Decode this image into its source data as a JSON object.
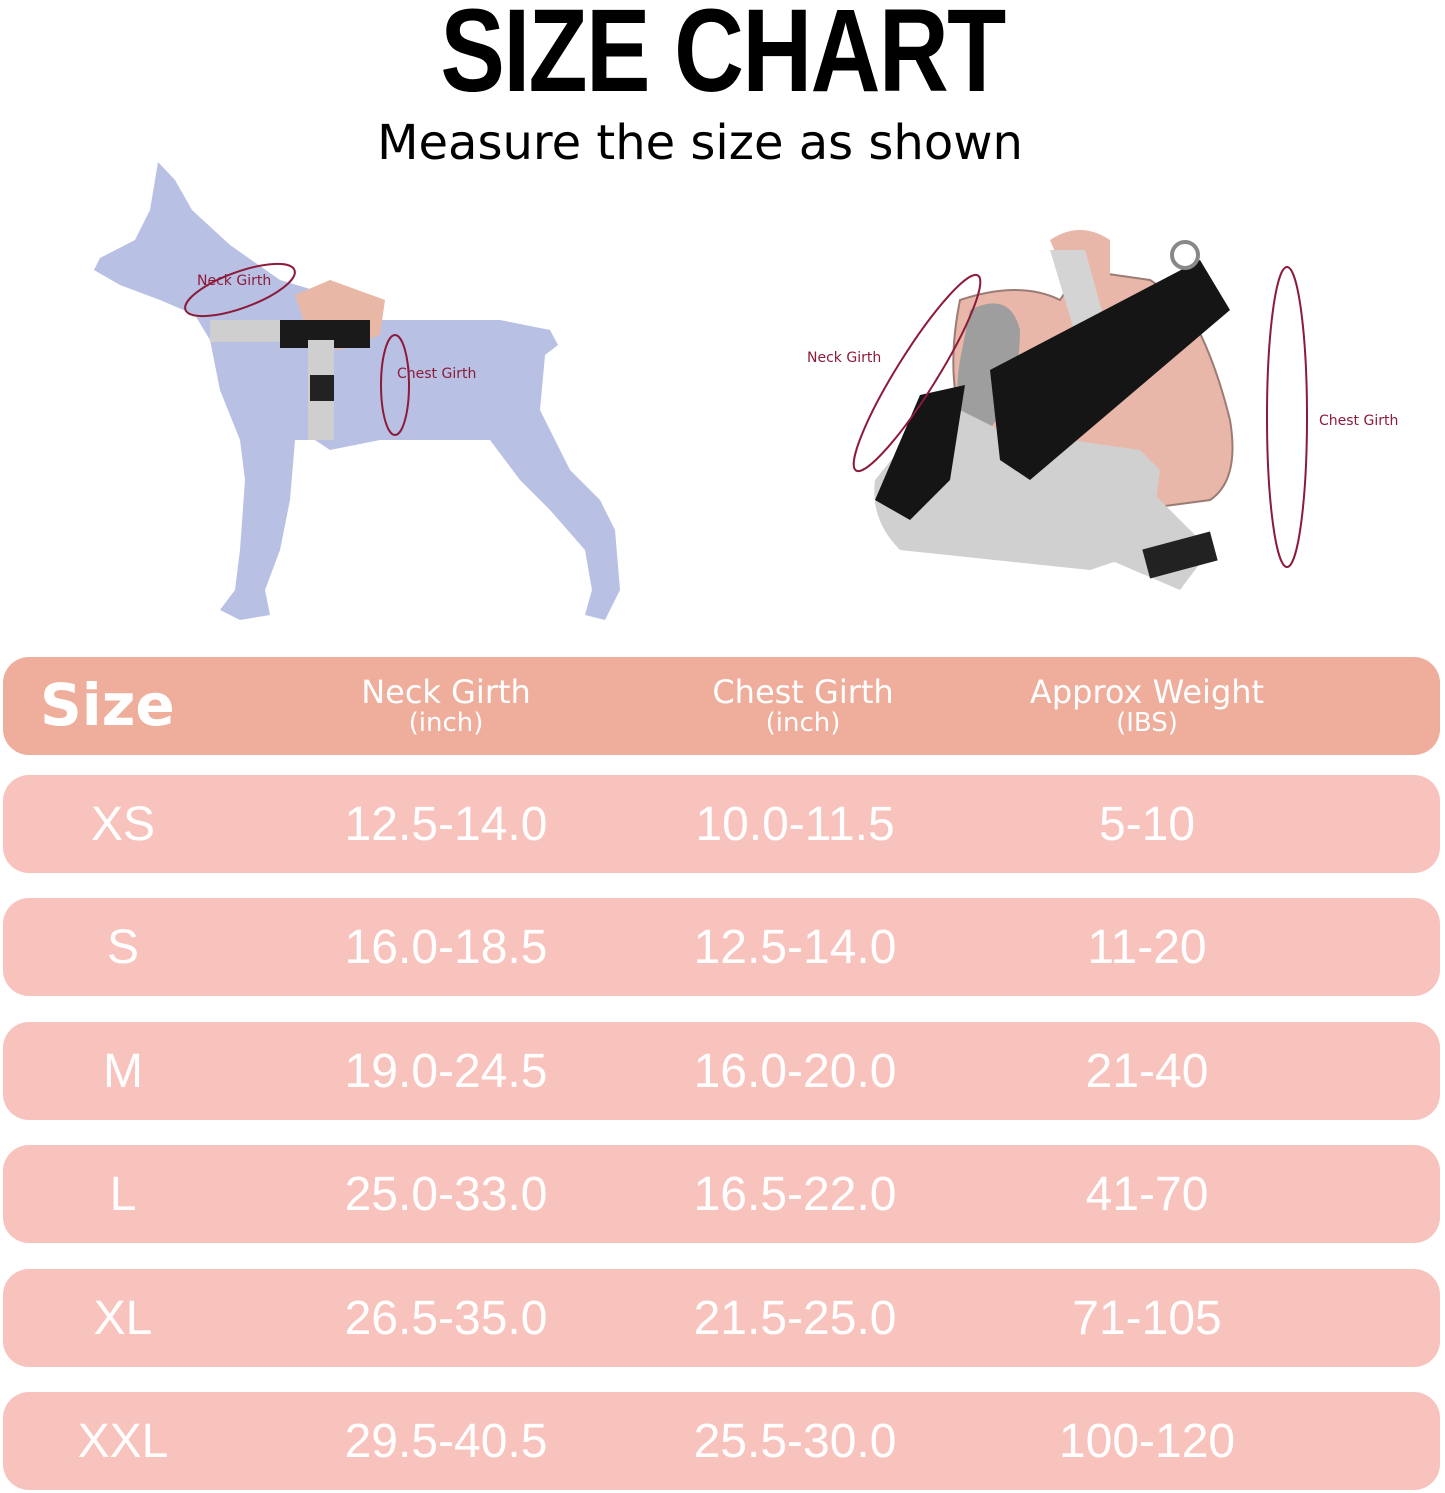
{
  "header": {
    "title": "SIZE CHART",
    "subtitle": "Measure the size as shown"
  },
  "illustrations": {
    "dog": {
      "neck_label": "Neck Girth",
      "chest_label": "Chest Girth"
    },
    "harness": {
      "neck_label": "Neck Girth",
      "chest_label": "Chest Girth"
    }
  },
  "colors": {
    "header_row": "#eeae9b",
    "data_row": "#f8c3bd",
    "measure_line": "#8c1b3a",
    "dog": "#b8c0e4"
  },
  "table": {
    "columns": [
      {
        "label": "Size"
      },
      {
        "label": "Neck Girth",
        "unit": "(inch)"
      },
      {
        "label": "Chest Girth",
        "unit": "(inch)"
      },
      {
        "label": "Approx Weight",
        "unit": "(IBS)"
      }
    ],
    "rows": [
      {
        "size": "XS",
        "neck": "12.5-14.0",
        "chest": "10.0-11.5",
        "weight": "5-10"
      },
      {
        "size": "S",
        "neck": "16.0-18.5",
        "chest": "12.5-14.0",
        "weight": "11-20"
      },
      {
        "size": "M",
        "neck": "19.0-24.5",
        "chest": "16.0-20.0",
        "weight": "21-40"
      },
      {
        "size": "L",
        "neck": "25.0-33.0",
        "chest": "16.5-22.0",
        "weight": "41-70"
      },
      {
        "size": "XL",
        "neck": "26.5-35.0",
        "chest": "21.5-25.0",
        "weight": "71-105"
      },
      {
        "size": "XXL",
        "neck": "29.5-40.5",
        "chest": "25.5-30.0",
        "weight": "100-120"
      }
    ]
  }
}
